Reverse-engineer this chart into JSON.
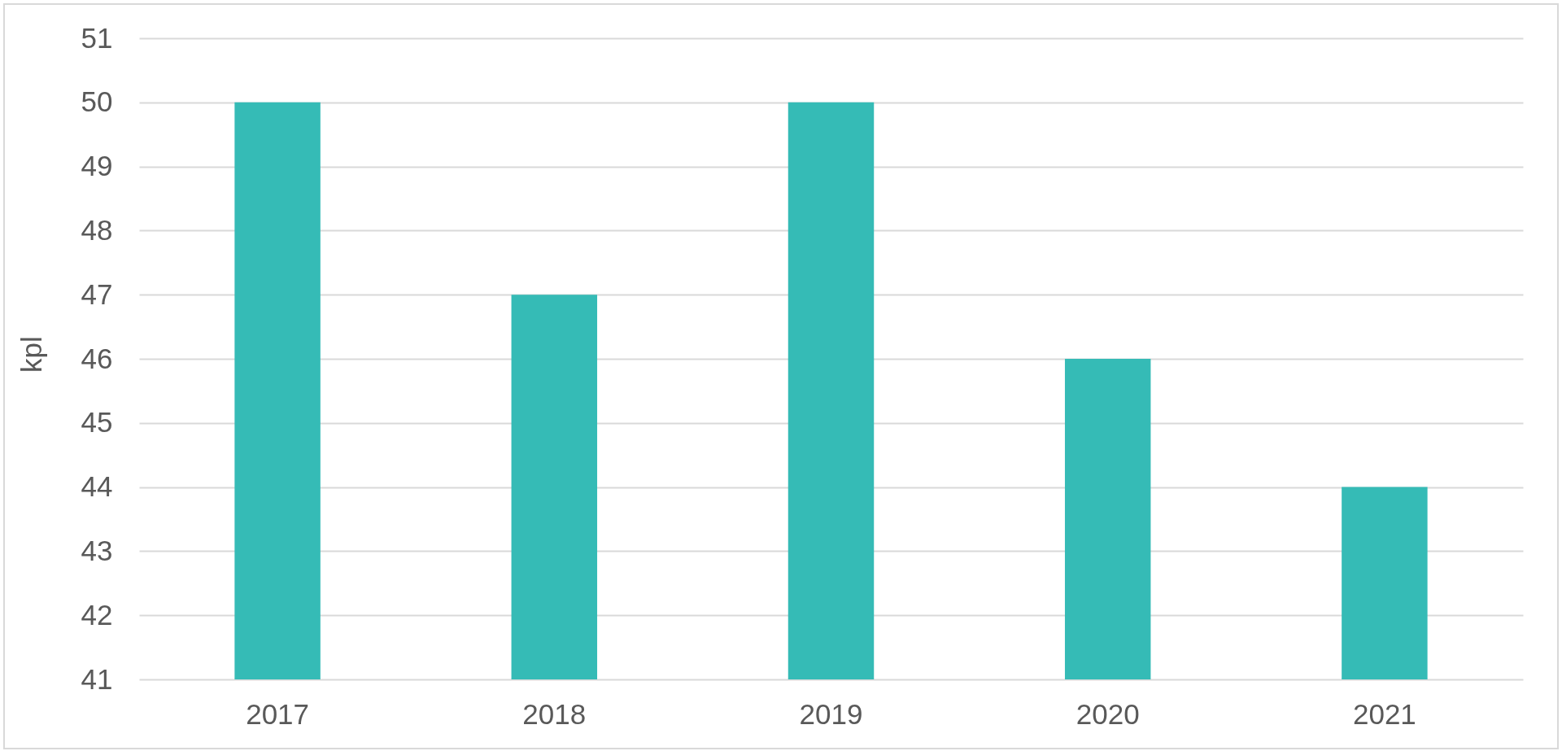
{
  "chart_data": {
    "type": "bar",
    "ylabel": "kpl",
    "categories": [
      "2017",
      "2018",
      "2019",
      "2020",
      "2021"
    ],
    "values": [
      50,
      47,
      50,
      46,
      44
    ],
    "color": "#35bbb6",
    "ylim": [
      41,
      51
    ],
    "yticks": [
      41,
      42,
      43,
      44,
      45,
      46,
      47,
      48,
      49,
      50,
      51
    ],
    "grid": "y"
  }
}
